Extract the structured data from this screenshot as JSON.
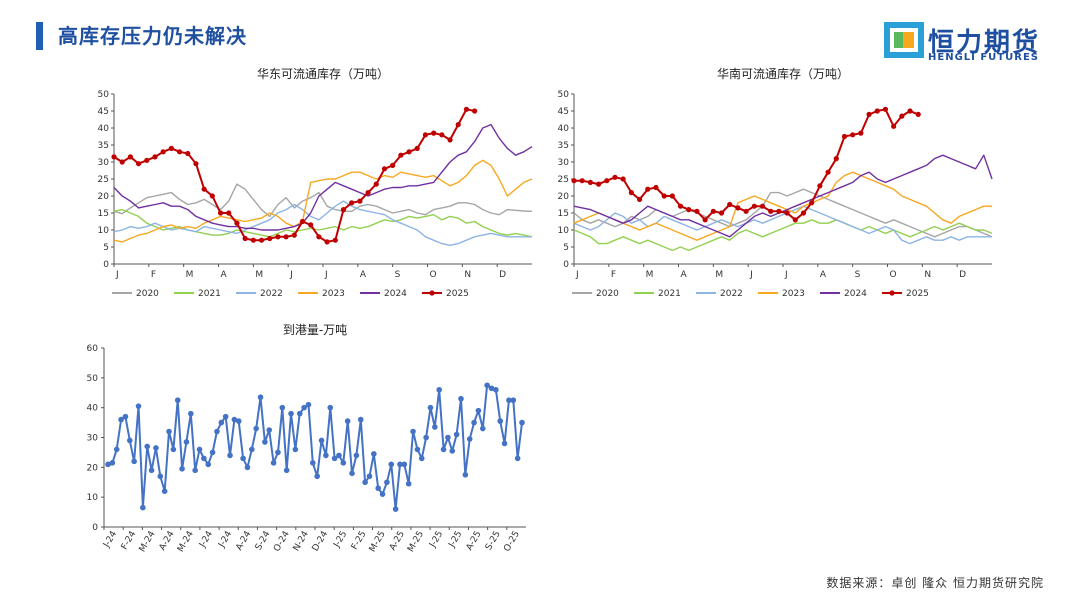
{
  "header": {
    "title": "高库存压力仍未解决"
  },
  "logo": {
    "name": "恒力期货",
    "subtitle": "HENGLI FUTURES"
  },
  "footer": {
    "source": "数据来源：卓创  隆众  恒力期货研究院"
  },
  "chart_data": [
    {
      "type": "line",
      "title": "华东可流通库存（万吨）",
      "months": [
        "J",
        "F",
        "M",
        "A",
        "M",
        "J",
        "J",
        "A",
        "S",
        "O",
        "N",
        "D"
      ],
      "ylim": [
        0,
        50
      ],
      "yticks": [
        0,
        5,
        10,
        15,
        20,
        25,
        30,
        35,
        40,
        45,
        50
      ],
      "legend_position": "bottom",
      "series": [
        {
          "name": "2020",
          "color": "#a6a6a6",
          "marker": false,
          "values": [
            15.5,
            14.8,
            16.5,
            18,
            19.5,
            20,
            20.5,
            21,
            19,
            17.5,
            18,
            19,
            17.5,
            16,
            18.5,
            23.5,
            22,
            19,
            16,
            14,
            17.5,
            19.5,
            16.5,
            18.5,
            19.5,
            21,
            17,
            16,
            15.5,
            15.5,
            17,
            17.5,
            17,
            16,
            15,
            15.5,
            16,
            15,
            14.5,
            16,
            16.5,
            17,
            18,
            18,
            17.5,
            16,
            15,
            14.5,
            16,
            15.8,
            15.6,
            15.5
          ]
        },
        {
          "name": "2021",
          "color": "#92d050",
          "marker": false,
          "values": [
            15.5,
            16,
            15,
            14,
            12,
            11,
            10,
            10.5,
            11,
            10,
            9.5,
            9,
            8.5,
            8.5,
            9,
            10,
            9.5,
            9,
            8.5,
            8,
            9,
            10,
            9.5,
            10,
            10.5,
            10,
            10.5,
            11,
            10,
            11,
            10.5,
            11,
            12,
            13,
            12.5,
            13,
            14,
            13.5,
            14,
            14.5,
            13,
            14,
            13.5,
            12,
            12.5,
            11,
            10,
            9,
            8.5,
            9,
            8.5,
            8
          ]
        },
        {
          "name": "2022",
          "color": "#8eb4e3",
          "marker": false,
          "values": [
            9.5,
            10,
            11,
            10.5,
            11,
            12,
            11,
            10,
            10.5,
            10,
            9.5,
            11,
            10.5,
            10,
            9.5,
            9,
            10,
            11,
            12,
            13,
            15,
            16,
            17.5,
            16,
            14,
            13,
            15,
            17,
            18.5,
            17,
            16,
            15.5,
            15,
            14.5,
            13,
            12,
            11,
            10,
            8,
            7,
            6,
            5.5,
            6,
            7,
            8,
            8.5,
            9,
            8.5,
            8,
            8,
            8,
            8
          ]
        },
        {
          "name": "2023",
          "color": "#f6a821",
          "marker": false,
          "values": [
            7,
            6.5,
            7.5,
            8.5,
            9,
            10,
            11,
            11.5,
            10.5,
            11,
            10.5,
            12,
            13,
            14,
            13.5,
            13,
            12.5,
            13,
            13.5,
            15,
            14,
            12,
            11,
            12.5,
            24,
            24.5,
            25,
            25,
            26,
            27,
            27,
            26,
            25,
            26,
            25.5,
            27,
            26.5,
            26,
            25.5,
            26,
            24.5,
            23,
            24,
            26,
            29,
            30.5,
            29,
            25,
            20,
            22,
            24,
            25
          ]
        },
        {
          "name": "2024",
          "color": "#7030a0",
          "marker": false,
          "values": [
            22.5,
            20,
            18.5,
            16.5,
            17,
            17.5,
            18,
            17,
            17,
            16,
            14,
            13,
            12,
            11.5,
            11,
            11,
            10.5,
            10.5,
            10,
            10,
            10,
            10.5,
            11,
            12,
            15,
            20,
            22,
            24,
            23,
            22,
            21,
            20,
            21,
            22,
            22.5,
            22.5,
            23,
            23,
            23.5,
            24,
            27,
            30,
            32,
            33,
            36,
            40,
            41,
            37,
            34,
            32,
            33,
            34.5
          ]
        },
        {
          "name": "2025",
          "color": "#c00000",
          "marker": true,
          "values": [
            31.5,
            30,
            31.5,
            29.5,
            30.5,
            31.5,
            33,
            34,
            33,
            32.5,
            29.5,
            22,
            20,
            15,
            15,
            12,
            7.5,
            7,
            7,
            7.5,
            8,
            8,
            8.5,
            12.5,
            11.5,
            8,
            6.5,
            7,
            16,
            18,
            18.5,
            21,
            23.5,
            28,
            29,
            32,
            33,
            34,
            38,
            38.5,
            38,
            36.5,
            41,
            45.5,
            45
          ]
        }
      ]
    },
    {
      "type": "line",
      "title": "华南可流通库存（万吨）",
      "months": [
        "J",
        "F",
        "M",
        "A",
        "M",
        "J",
        "J",
        "A",
        "S",
        "O",
        "N",
        "D"
      ],
      "ylim": [
        0,
        50
      ],
      "yticks": [
        0,
        5,
        10,
        15,
        20,
        25,
        30,
        35,
        40,
        45,
        50
      ],
      "legend_position": "bottom",
      "series": [
        {
          "name": "2020",
          "color": "#a6a6a6",
          "marker": false,
          "values": [
            15,
            13,
            12,
            13,
            12,
            11,
            12,
            14,
            13,
            14,
            16,
            15,
            14,
            15,
            16,
            15,
            14,
            13,
            12,
            11,
            12,
            13,
            15,
            17,
            21,
            21,
            20,
            21,
            22,
            21,
            20,
            19,
            18,
            17,
            16,
            15,
            14,
            13,
            12,
            13,
            12,
            11,
            10,
            9,
            8,
            9,
            10,
            11,
            11,
            10,
            9,
            8
          ]
        },
        {
          "name": "2021",
          "color": "#92d050",
          "marker": false,
          "values": [
            10,
            9,
            8,
            6,
            6,
            7,
            8,
            7,
            6,
            7,
            6,
            5,
            4,
            5,
            4,
            5,
            6,
            7,
            8,
            7,
            9,
            10,
            9,
            8,
            9,
            10,
            11,
            12,
            12,
            13,
            12,
            12,
            13,
            12,
            11,
            10,
            11,
            10,
            9,
            10,
            9,
            8,
            9,
            10,
            11,
            10,
            11,
            12,
            11,
            10,
            10,
            9
          ]
        },
        {
          "name": "2022",
          "color": "#8eb4e3",
          "marker": false,
          "values": [
            12,
            11,
            10,
            11,
            13,
            15,
            14,
            12,
            13,
            11,
            12,
            14,
            13,
            12,
            11,
            10,
            11,
            12,
            13,
            12,
            11,
            12,
            13,
            12,
            13,
            14,
            15,
            16,
            17,
            16,
            15,
            14,
            13,
            12,
            11,
            10,
            9,
            10,
            11,
            10,
            7,
            6,
            7,
            8,
            7,
            7,
            8,
            7,
            8,
            8,
            8,
            8
          ]
        },
        {
          "name": "2023",
          "color": "#f6a821",
          "marker": false,
          "values": [
            12,
            13,
            14,
            15,
            14,
            13,
            12,
            11,
            10,
            11,
            12,
            11,
            10,
            9,
            8,
            7,
            8,
            9,
            10,
            11,
            18,
            19,
            20,
            19,
            18,
            17,
            16,
            15,
            17,
            18,
            19,
            20,
            24,
            26,
            27,
            26,
            25,
            24,
            23,
            22,
            20,
            19,
            18,
            17,
            15,
            13,
            12,
            14,
            15,
            16,
            17,
            17
          ]
        },
        {
          "name": "2024",
          "color": "#7030a0",
          "marker": false,
          "values": [
            17,
            16.5,
            16,
            15,
            14,
            13,
            12,
            13,
            15,
            17,
            16,
            15,
            14,
            13,
            13,
            12,
            11,
            10,
            9,
            8,
            10,
            12,
            14,
            15,
            14,
            15,
            16,
            17,
            18,
            19,
            20,
            21,
            22,
            23,
            24,
            26,
            27,
            25,
            24,
            25,
            26,
            27,
            28,
            29,
            31,
            32,
            31,
            30,
            29,
            28,
            32,
            25
          ]
        },
        {
          "name": "2025",
          "color": "#c00000",
          "marker": true,
          "values": [
            24.5,
            24.5,
            24,
            23.5,
            24.5,
            25.5,
            25,
            21,
            19,
            22,
            22.5,
            20,
            20,
            17,
            16,
            15.5,
            13,
            15.5,
            15,
            17.5,
            16.5,
            15.5,
            17,
            17,
            15.5,
            15.5,
            15,
            13,
            15,
            18,
            23,
            27,
            31,
            37.5,
            38,
            38.5,
            44,
            45,
            45.5,
            40.5,
            43.5,
            45,
            44
          ]
        }
      ]
    },
    {
      "type": "line",
      "title": "到港量-万吨",
      "ylim": [
        0,
        60
      ],
      "yticks": [
        0,
        10,
        20,
        30,
        40,
        50,
        60
      ],
      "xticks": [
        "J-24",
        "F-24",
        "M-24",
        "A-24",
        "M-24",
        "J-24",
        "J-24",
        "A-24",
        "S-24",
        "O-24",
        "N-24",
        "D-24",
        "J-25",
        "F-25",
        "M-25",
        "A-25",
        "M-25",
        "J-25",
        "J-25",
        "A-25",
        "S-25",
        "O-25"
      ],
      "color": "#4472c4",
      "values": [
        21,
        21.5,
        26,
        36,
        37,
        29,
        22,
        40.5,
        6.5,
        27,
        19,
        26.5,
        17,
        12,
        32,
        26,
        42.5,
        19.5,
        28.5,
        38,
        19,
        26,
        23,
        21,
        25,
        32,
        35,
        37,
        24,
        36,
        35.5,
        23,
        20,
        26,
        33,
        43.5,
        28.5,
        32.5,
        21.5,
        25,
        40,
        19,
        38,
        26,
        38,
        40,
        41,
        21.5,
        17,
        29,
        24,
        40,
        23,
        24,
        21.5,
        35.5,
        18,
        24,
        36,
        15,
        17,
        24.5,
        13,
        11,
        15,
        21,
        6,
        21,
        21,
        14.5,
        32,
        26,
        23,
        30,
        40,
        33.5,
        46,
        26,
        30,
        25.5,
        31,
        43,
        17.5,
        29.5,
        35,
        39,
        33,
        47.5,
        46.5,
        46,
        35.5,
        28,
        42.5,
        42.5,
        23,
        35
      ]
    }
  ]
}
